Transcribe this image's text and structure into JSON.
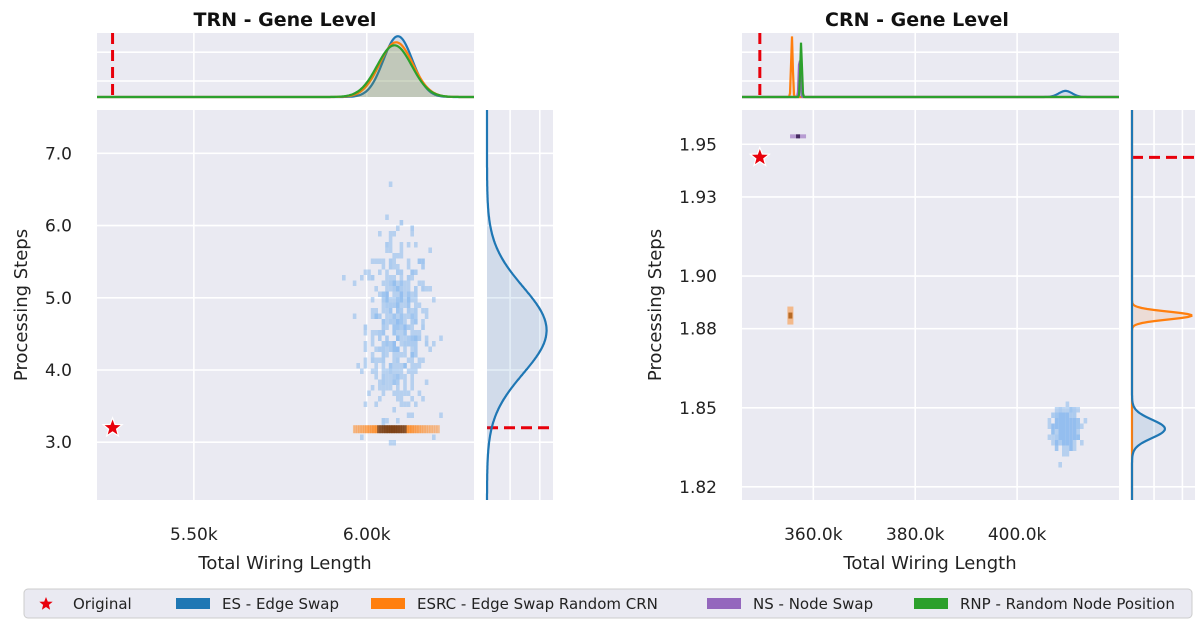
{
  "chart_data": [
    {
      "type": "scatter",
      "panel": "left",
      "title": "TRN - Gene Level",
      "xlabel": "Total Wiring Length",
      "ylabel": "Processing Steps",
      "xlim": [
        5220,
        6310
      ],
      "ylim": [
        2.2,
        7.6
      ],
      "xticks": [
        5500,
        6000
      ],
      "xtick_labels": [
        "5.50k",
        "6.00k"
      ],
      "yticks": [
        3,
        4,
        5,
        6,
        7
      ],
      "ytick_labels": [
        "3.0",
        "4.0",
        "5.0",
        "6.0",
        "7.0"
      ],
      "grid": true,
      "original": {
        "x": 5265,
        "y": 3.2
      },
      "es_hist": {
        "x_mean": 6090,
        "x_sd": 45,
        "y_mean": 4.6,
        "y_sd": 0.6,
        "y_min": 3.0,
        "y_max": 6.8,
        "count": 480
      },
      "esrc_band": {
        "x_min": 5960,
        "x_max": 6210,
        "y": 3.18
      },
      "top_marginal": [
        {
          "series": "ES - Edge Swap",
          "mean": 6090,
          "sd": 42,
          "height": 1.0
        },
        {
          "series": "ESRC - Edge Swap Random CRN",
          "mean": 6085,
          "sd": 48,
          "height": 0.9
        },
        {
          "series": "RNP - Random Node Position",
          "mean": 6080,
          "sd": 50,
          "height": 0.85
        }
      ],
      "right_marginal": {
        "series": "ES - Edge Swap",
        "mean": 4.55,
        "sd": 0.6
      }
    },
    {
      "type": "scatter",
      "panel": "right",
      "title": "CRN - Gene Level",
      "xlabel": "Total Wiring Length",
      "ylabel": "Processing Steps",
      "xlim": [
        346000,
        420000
      ],
      "ylim": [
        1.815,
        1.963
      ],
      "xticks": [
        360000,
        380000,
        400000
      ],
      "xtick_labels": [
        "360.0k",
        "380.0k",
        "400.0k"
      ],
      "yticks": [
        1.82,
        1.85,
        1.88,
        1.9,
        1.93,
        1.95
      ],
      "ytick_labels": [
        "1.82",
        "1.85",
        "1.88",
        "1.90",
        "1.93",
        "1.95"
      ],
      "grid": true,
      "original": {
        "x": 349500,
        "y": 1.945
      },
      "es_hist": {
        "x_mean": 409500,
        "x_sd": 1200,
        "y_mean": 1.842,
        "y_sd": 0.0035,
        "count": 420
      },
      "esrc_cluster": {
        "x": 355500,
        "y": 1.885
      },
      "ns_cluster": {
        "x": 357000,
        "y": 1.953
      },
      "top_marginal": [
        {
          "series": "ES - Edge Swap",
          "mean": 409500,
          "sd": 1300,
          "height": 0.1
        },
        {
          "series": "ESRC - Edge Swap Random CRN",
          "mean": 355800,
          "sd": 160,
          "height": 1.0
        },
        {
          "series": "NS - Node Swap",
          "mean": 357300,
          "sd": 150,
          "height": 0.7
        },
        {
          "series": "RNP - Random Node Position",
          "mean": 357600,
          "sd": 160,
          "height": 0.9
        }
      ],
      "right_marginal": [
        {
          "series": "ESRC - Edge Swap Random CRN",
          "mean": 1.885,
          "sd": 0.0015,
          "height": 1.0
        },
        {
          "series": "ES - Edge Swap",
          "mean": 1.842,
          "sd": 0.0035,
          "height": 0.55
        }
      ]
    }
  ],
  "legend": {
    "placement": "bottom",
    "items": [
      {
        "label": "Original",
        "color": "#e8000b",
        "marker": "star"
      },
      {
        "label": "ES - Edge Swap",
        "color": "#1f77b4",
        "marker": "patch"
      },
      {
        "label": "ESRC - Edge Swap Random CRN",
        "color": "#ff7f0e",
        "marker": "patch"
      },
      {
        "label": "NS - Node Swap",
        "color": "#9467bd",
        "marker": "patch"
      },
      {
        "label": "RNP - Random Node Position",
        "color": "#2ca02c",
        "marker": "patch"
      }
    ]
  },
  "colors": {
    "axes_bg": "#eaeaf2",
    "grid": "#ffffff",
    "original": "#e8000b",
    "es": "#1f77b4",
    "es_hist": "#8fbcee",
    "esrc": "#ff7f0e",
    "ns": "#9467bd",
    "rnp": "#2ca02c"
  }
}
